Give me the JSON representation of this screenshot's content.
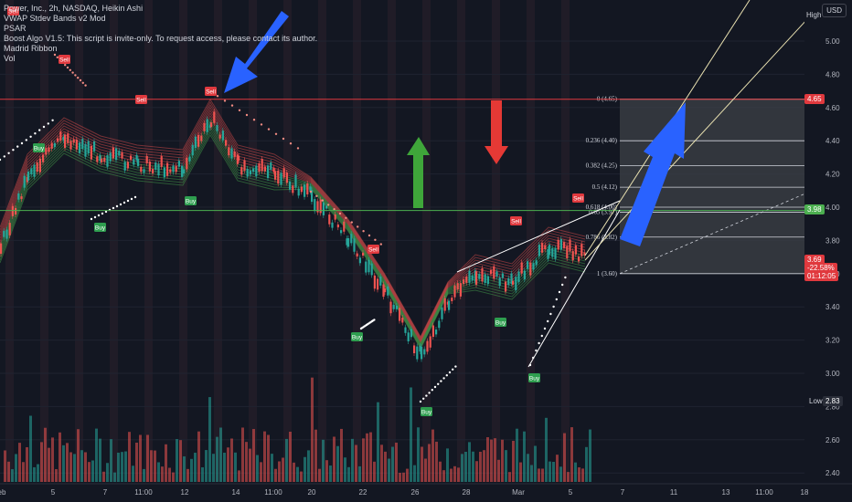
{
  "legend": {
    "title": "Power, Inc., 2h, NASDAQ, Heikin Ashi",
    "indicators": [
      "VWAP Stdev Bands v2 Mod",
      "PSAR",
      "Boost Algo V1.5: This script is invite-only. To request access, please contact its author.",
      "Madrid Ribbon",
      "Vol"
    ]
  },
  "currency_button": "USD",
  "high_label": "High",
  "price_axis": {
    "ticks": [
      "5.00",
      "4.80",
      "4.60",
      "4.40",
      "4.20",
      "4.00",
      "3.80",
      "3.60",
      "3.40",
      "3.20",
      "3.00",
      "2.80",
      "2.60",
      "2.40"
    ],
    "badges": {
      "level_top": "4.65",
      "level_mid": "3.98",
      "current_price": "3.69",
      "current_change": "-22.58%",
      "countdown": "01:12:05",
      "low_label": "Low",
      "low_value": "2.83"
    }
  },
  "time_axis": [
    "eb",
    "5",
    "7",
    "11:00",
    "12",
    "14",
    "11:00",
    "20",
    "22",
    "26",
    "28",
    "Mar",
    "5",
    "7",
    "11",
    "13",
    "11:00",
    "18"
  ],
  "fib": {
    "levels": [
      {
        "ratio": "0",
        "price": "4.65",
        "label": "0 (4.65)"
      },
      {
        "ratio": "0.236",
        "price": "4.40",
        "label": "0.236 (4.40)"
      },
      {
        "ratio": "0.382",
        "price": "4.25",
        "label": "0.382 (4.25)"
      },
      {
        "ratio": "0.5",
        "price": "4.12",
        "label": "0.5 (4.12)"
      },
      {
        "ratio": "0.618",
        "price": "4.00",
        "label": "0.618 (4.00)"
      },
      {
        "ratio": "0.65",
        "price": "3.97",
        "label": "0.65 (3.97)"
      },
      {
        "ratio": "0.786",
        "price": "3.82",
        "label": "0.786 (3.82)"
      },
      {
        "ratio": "1",
        "price": "3.60",
        "label": "1 (3.60)"
      }
    ]
  },
  "signals": [
    {
      "text": "Sell",
      "type": "sell"
    },
    {
      "text": "Sell",
      "type": "sell"
    },
    {
      "text": "Buy",
      "type": "buy"
    },
    {
      "text": "Buy",
      "type": "buy"
    },
    {
      "text": "Sell",
      "type": "sell"
    },
    {
      "text": "Sell",
      "type": "sell"
    },
    {
      "text": "Buy",
      "type": "buy"
    },
    {
      "text": "Sell",
      "type": "sell"
    },
    {
      "text": "Buy",
      "type": "buy"
    },
    {
      "text": "Buy",
      "type": "buy"
    },
    {
      "text": "Sell",
      "type": "sell"
    },
    {
      "text": "Buy",
      "type": "buy"
    },
    {
      "text": "Buy",
      "type": "buy"
    },
    {
      "text": "Sell",
      "type": "sell"
    }
  ],
  "colors": {
    "background": "#131722",
    "bull": "#26a69a",
    "bear": "#ef5350",
    "buy_label": "#2e9e4f",
    "sell_label": "#e0393e",
    "resistance_line": "#e0393e",
    "support_line": "#4caf50",
    "arrow_blue": "#2962ff",
    "arrow_green": "#3fa63a",
    "arrow_red": "#e53935",
    "fib_fill": "#3b3e45"
  }
}
